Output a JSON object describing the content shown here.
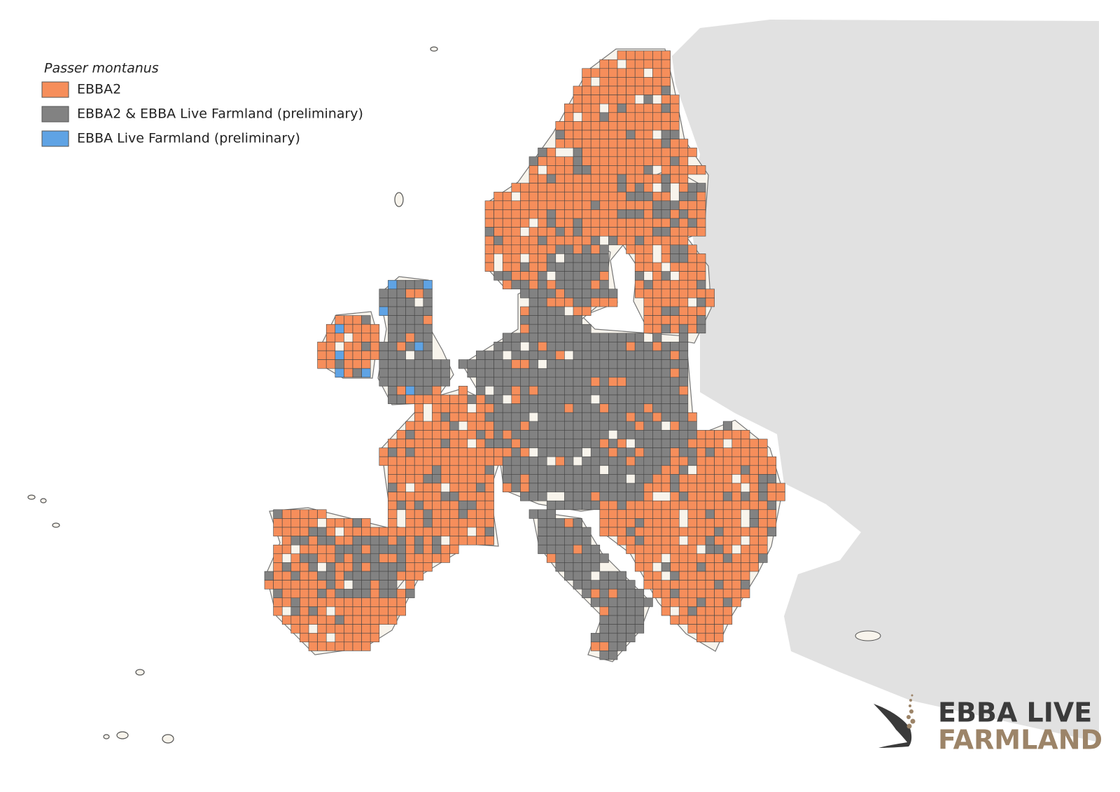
{
  "legend": {
    "title": "Passer montanus",
    "items": [
      {
        "label": "EBBA2",
        "color": "#f68e5b"
      },
      {
        "label": "EBBA2 & EBBA Live Farmland (preliminary)",
        "color": "#828282"
      },
      {
        "label": "EBBA Live Farmland (preliminary)",
        "color": "#5fa3e4"
      }
    ]
  },
  "logo": {
    "line1": "EBBA LIVE",
    "line2": "FARMLAND"
  }
}
